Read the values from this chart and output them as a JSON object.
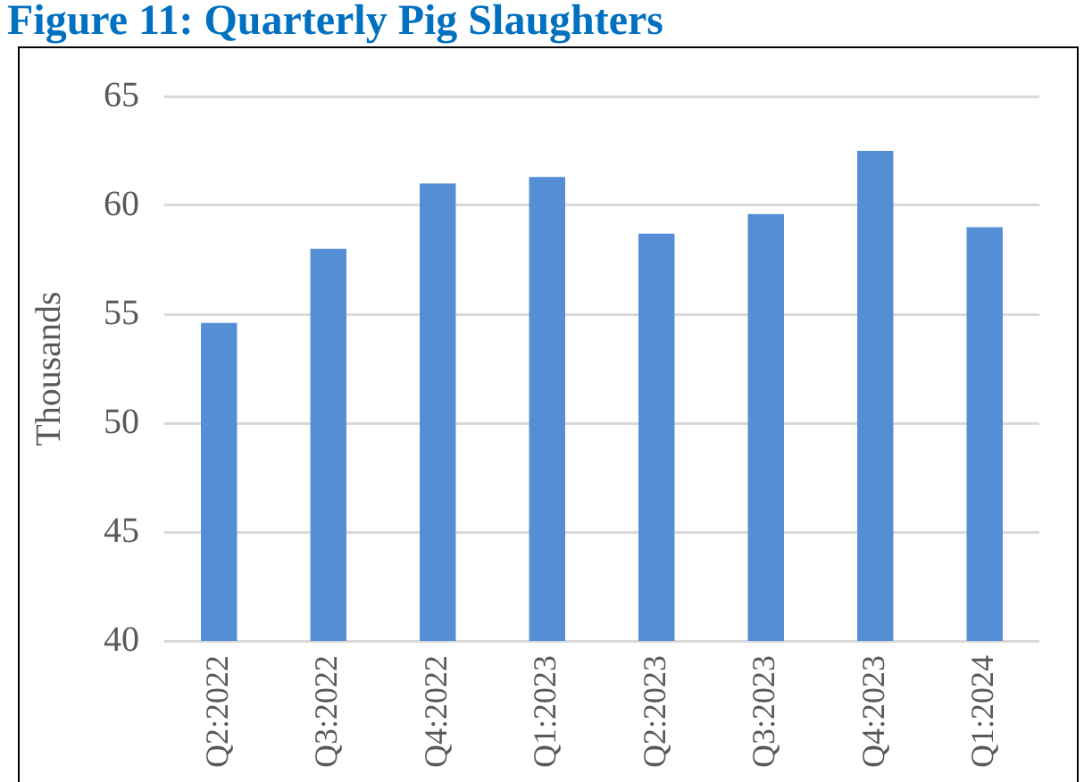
{
  "chart_data": {
    "type": "bar",
    "title": "Figure 11: Quarterly Pig Slaughters",
    "ylabel": "Thousands",
    "categories": [
      "Q2:2022",
      "Q3:2022",
      "Q4:2022",
      "Q1:2023",
      "Q2:2023",
      "Q3:2023",
      "Q4:2023",
      "Q1:2024"
    ],
    "values": [
      54.6,
      58.0,
      61.0,
      61.3,
      58.7,
      59.6,
      62.5,
      59.0
    ],
    "color": "#558ed5",
    "ylim": [
      40,
      65
    ],
    "yticks": [
      40,
      45,
      50,
      55,
      60,
      65
    ],
    "grid": "y",
    "legend": false
  }
}
